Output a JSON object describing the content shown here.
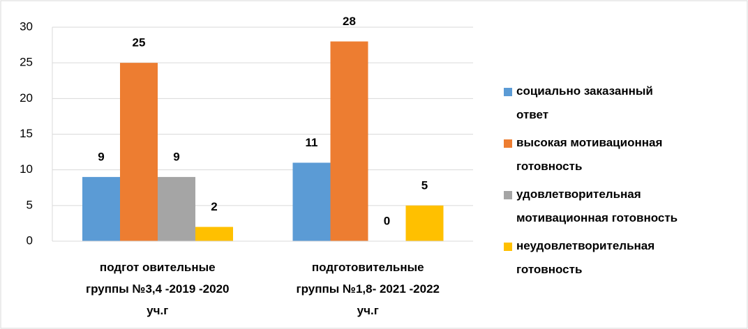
{
  "chart_data": {
    "type": "bar",
    "categories": [
      "подгот овительные\nгруппы №3,4 -2019 -2020\nуч.г",
      "подготовительные\nгруппы №1,8- 2021 -2022\nуч.г"
    ],
    "series": [
      {
        "name": "социально заказанный\nответ",
        "color": "#5b9bd5",
        "values": [
          9,
          11
        ]
      },
      {
        "name": "высокая мотивационная\nготовность",
        "color": "#ed7d31",
        "values": [
          25,
          28
        ]
      },
      {
        "name": "удовлетворительная\nмотивационная готовность",
        "color": "#a5a5a5",
        "values": [
          9,
          0
        ]
      },
      {
        "name": "неудовлетворительная\nготовность",
        "color": "#ffc000",
        "values": [
          2,
          5
        ]
      }
    ],
    "ylim": [
      0,
      30
    ],
    "yticks": [
      0,
      5,
      10,
      15,
      20,
      25,
      30
    ],
    "grid": true,
    "legend": "right"
  }
}
